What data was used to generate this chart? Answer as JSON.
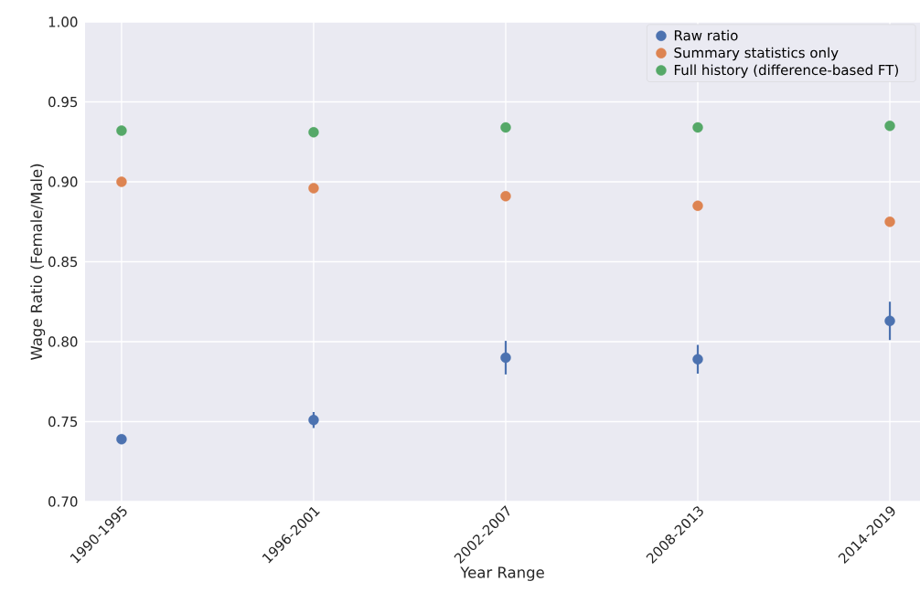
{
  "chart_data": {
    "type": "scatter",
    "xlabel": "Year Range",
    "ylabel": "Wage Ratio (Female/Male)",
    "categories": [
      "1990-1995",
      "1996-2001",
      "2002-2007",
      "2008-2013",
      "2014-2019"
    ],
    "series": [
      {
        "name": "Raw ratio",
        "color": "#4c72b0",
        "values": [
          0.739,
          0.751,
          0.79,
          0.789,
          0.813
        ],
        "errors": [
          null,
          0.005,
          0.0105,
          0.009,
          0.012
        ]
      },
      {
        "name": "Summary statistics only",
        "color": "#dd8452",
        "values": [
          0.9,
          0.896,
          0.891,
          0.885,
          0.875
        ]
      },
      {
        "name": "Full history (difference-based FT)",
        "color": "#55a868",
        "values": [
          0.932,
          0.931,
          0.934,
          0.934,
          0.935
        ]
      }
    ],
    "ylim": [
      0.7,
      1.0
    ],
    "yticks": [
      {
        "value": 0.7,
        "label": "0.70"
      },
      {
        "value": 0.75,
        "label": "0.75"
      },
      {
        "value": 0.8,
        "label": "0.80"
      },
      {
        "value": 0.85,
        "label": "0.85"
      },
      {
        "value": 0.9,
        "label": "0.90"
      },
      {
        "value": 0.95,
        "label": "0.95"
      },
      {
        "value": 1.0,
        "label": "1.00"
      }
    ],
    "grid": true,
    "legend": "top right",
    "marker": "circle"
  }
}
